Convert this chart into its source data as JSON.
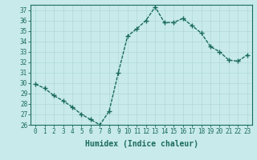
{
  "x": [
    0,
    1,
    2,
    3,
    4,
    5,
    6,
    7,
    8,
    9,
    10,
    11,
    12,
    13,
    14,
    15,
    16,
    17,
    18,
    19,
    20,
    21,
    22,
    23
  ],
  "y": [
    29.9,
    29.5,
    28.8,
    28.3,
    27.7,
    27.0,
    26.5,
    26.0,
    27.3,
    31.0,
    34.5,
    35.2,
    36.0,
    37.3,
    35.8,
    35.8,
    36.2,
    35.5,
    34.8,
    33.5,
    33.0,
    32.2,
    32.1,
    32.7
  ],
  "line_color": "#1a6b5a",
  "marker": "+",
  "marker_size": 4,
  "bg_color": "#c8eaea",
  "grid_color": "#b0d8d8",
  "xlabel": "Humidex (Indice chaleur)",
  "ylim": [
    26,
    37.5
  ],
  "xlim": [
    -0.5,
    23.5
  ],
  "yticks": [
    26,
    27,
    28,
    29,
    30,
    31,
    32,
    33,
    34,
    35,
    36,
    37
  ],
  "xticks": [
    0,
    1,
    2,
    3,
    4,
    5,
    6,
    7,
    8,
    9,
    10,
    11,
    12,
    13,
    14,
    15,
    16,
    17,
    18,
    19,
    20,
    21,
    22,
    23
  ],
  "tick_fontsize": 5.5,
  "xlabel_fontsize": 7.0,
  "line_width": 1.0
}
